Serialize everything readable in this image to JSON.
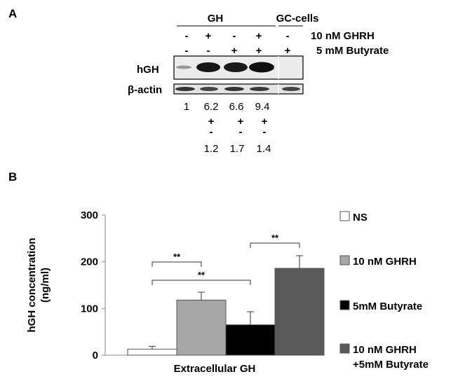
{
  "panel_a": {
    "label": "A",
    "group_gh": "GH",
    "group_gc": "GC-cells",
    "treatments": [
      {
        "name": "10 nM GHRH",
        "signs": [
          "-",
          "+",
          "-",
          "+",
          "-"
        ]
      },
      {
        "name": "5 mM Butyrate",
        "signs": [
          "-",
          "-",
          "+",
          "+",
          "+"
        ]
      }
    ],
    "blots": [
      "hGH",
      "β-actin"
    ],
    "ratios": [
      "1",
      "6.2",
      "6.6",
      "9.4"
    ],
    "comparison_top": [
      "+",
      "+",
      "+"
    ],
    "comparison_bottom": [
      "-",
      "-",
      "-"
    ],
    "comparison_values": [
      "1.2",
      "1.7",
      "1.4"
    ]
  },
  "panel_b_label": "B",
  "chart_data": {
    "type": "bar",
    "categories": [
      "Extracellular GH"
    ],
    "xlabel": "Extracellular GH",
    "ylabel": "hGH concentration\n(ng/ml)",
    "ylabel_lines": [
      "hGH concentration",
      "(ng/ml)"
    ],
    "ylim": [
      0,
      300
    ],
    "yticks": [
      0,
      100,
      200,
      300
    ],
    "series": [
      {
        "name": "NS",
        "value": 13,
        "error": 6,
        "color": "#ffffff"
      },
      {
        "name": "10 nM GHRH",
        "value": 118,
        "error": 17,
        "color": "#a6a6a6"
      },
      {
        "name": "5mM Butyrate",
        "value": 65,
        "error": 28,
        "color": "#000000"
      },
      {
        "name": "10 nM GHRH\n+5mM Butyrate",
        "name_lines": [
          "10 nM GHRH",
          "+5mM Butyrate"
        ],
        "value": 186,
        "error": 27,
        "color": "#595959"
      }
    ],
    "significance": [
      {
        "from": 0,
        "to": 1,
        "label": "**"
      },
      {
        "from": 0,
        "to": 2,
        "label": "**"
      },
      {
        "from": 2,
        "to": 3,
        "label": "**"
      }
    ],
    "legend_position": "right"
  }
}
